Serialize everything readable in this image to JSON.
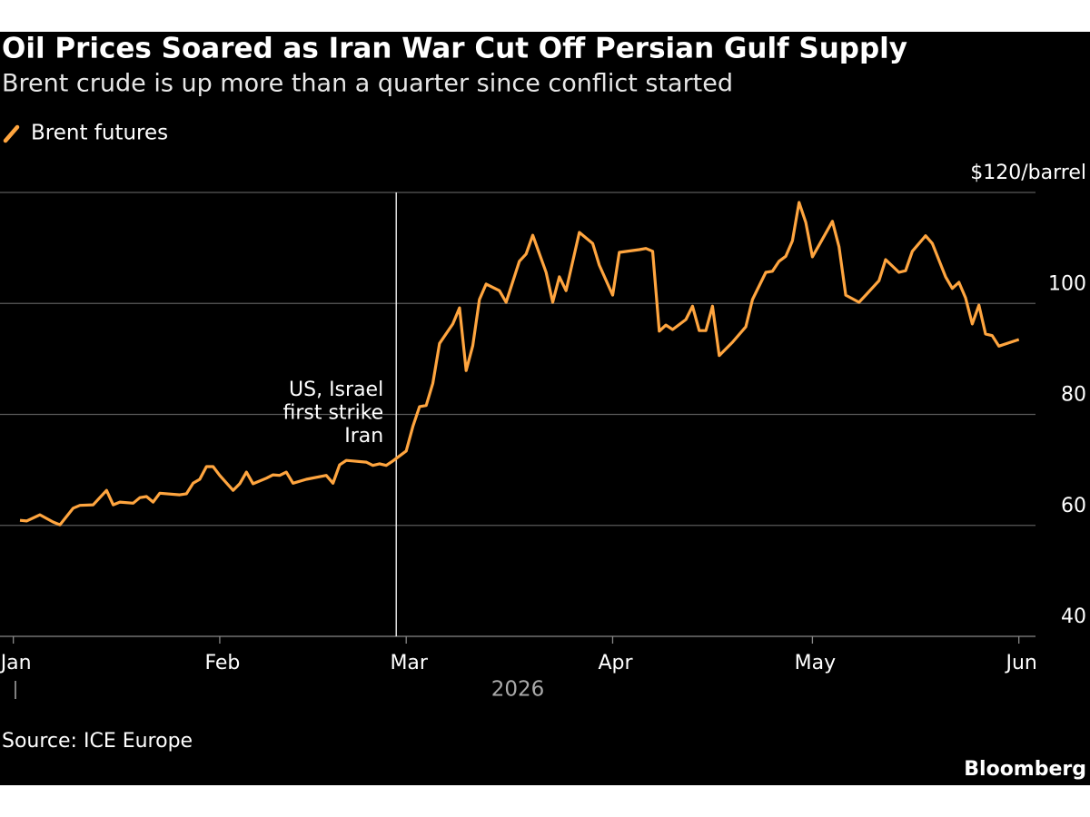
{
  "chart_data": {
    "type": "line",
    "title": "Oil Prices Soared as Iran War Cut Off Persian Gulf Supply",
    "subtitle": "Brent crude is up more than a quarter since conflict started",
    "x_axis_label": "2026",
    "source": "Source: ICE Europe",
    "brand": "Bloomberg",
    "annotation": {
      "x": 57.5,
      "lines": [
        "US, Israel",
        "first strike",
        "Iran"
      ]
    },
    "x": [
      1,
      2,
      4,
      6,
      7,
      9,
      10,
      12,
      14,
      15,
      16,
      18,
      19,
      20,
      21,
      22,
      25,
      26,
      27,
      28,
      29,
      30,
      31,
      33,
      34,
      35,
      36,
      38,
      39,
      40,
      41,
      42,
      44,
      47,
      48,
      49,
      50,
      51,
      53,
      54,
      55,
      56,
      57,
      59,
      60,
      61,
      62,
      63,
      64,
      66,
      67,
      68,
      69,
      70,
      71,
      73,
      74,
      76,
      77,
      78,
      80,
      81,
      82,
      83,
      85,
      87,
      88,
      90,
      91,
      94,
      95,
      96,
      97,
      98,
      99,
      101,
      102,
      103,
      104,
      105,
      106,
      108,
      110,
      111,
      113,
      114,
      115,
      116,
      117,
      118,
      119,
      120,
      121,
      123,
      124,
      125,
      127,
      128,
      130,
      131,
      133,
      134,
      135,
      137,
      138,
      140,
      141,
      142,
      143,
      144,
      145,
      146,
      147,
      148,
      151
    ],
    "series": [
      {
        "name": "Brent futures",
        "color": "#ffa53f",
        "values": [
          60.9,
          60.8,
          61.9,
          60.6,
          60.1,
          63.1,
          63.6,
          63.7,
          66.3,
          63.7,
          64.2,
          64.0,
          65.0,
          65.2,
          64.2,
          65.8,
          65.5,
          65.7,
          67.6,
          68.3,
          70.6,
          70.6,
          69.0,
          66.3,
          67.5,
          69.6,
          67.5,
          68.5,
          69.1,
          69.0,
          69.6,
          67.6,
          68.3,
          69.0,
          67.6,
          70.9,
          71.7,
          71.6,
          71.4,
          70.8,
          71.1,
          70.8,
          71.6,
          73.4,
          77.8,
          81.4,
          81.6,
          85.6,
          92.8,
          96.3,
          99.2,
          87.9,
          92.4,
          100.7,
          103.5,
          102.3,
          100.2,
          107.6,
          108.9,
          112.3,
          105.6,
          100.2,
          104.8,
          102.3,
          112.8,
          110.8,
          106.9,
          101.5,
          109.2,
          109.7,
          109.9,
          109.4,
          95.0,
          96.1,
          95.3,
          97.1,
          99.5,
          95.1,
          95.1,
          99.5,
          90.6,
          93.0,
          95.8,
          100.7,
          105.6,
          105.8,
          107.6,
          108.5,
          111.3,
          118.2,
          114.6,
          108.4,
          110.5,
          114.8,
          110.2,
          101.5,
          100.2,
          101.5,
          104.1,
          107.9,
          105.6,
          105.9,
          109.4,
          112.2,
          110.8,
          104.8,
          102.7,
          103.8,
          101.0,
          96.3,
          99.7,
          94.5,
          94.2,
          92.3,
          93.5
        ]
      }
    ],
    "xlim": [
      -2,
      153.5
    ],
    "xticks": [
      {
        "value": 0,
        "label": "Jan"
      },
      {
        "value": 31,
        "label": "Feb"
      },
      {
        "value": 59,
        "label": "Mar"
      },
      {
        "value": 90,
        "label": "Apr"
      },
      {
        "value": 120,
        "label": "May"
      },
      {
        "value": 151,
        "label": "Jun"
      }
    ],
    "ylim": [
      40,
      120
    ],
    "yticks": [
      40,
      60,
      80,
      100,
      {
        "value": 120,
        "label": "$120/barrel"
      }
    ],
    "grid": true
  }
}
